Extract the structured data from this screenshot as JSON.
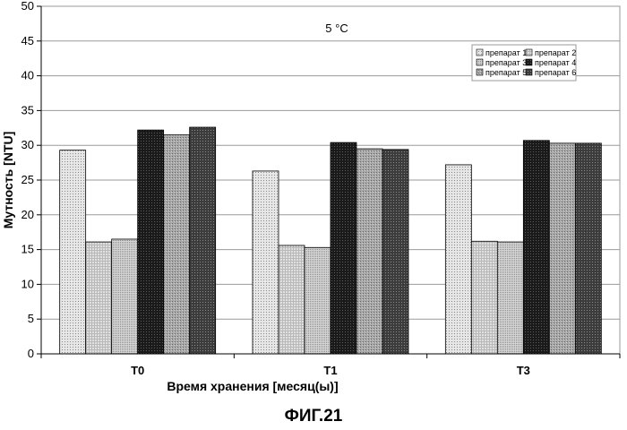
{
  "chart_data": {
    "type": "bar",
    "title": "",
    "annotation": "5 °C",
    "xlabel": "Время хранения [месяц(ы)]",
    "ylabel": "Мутность [NTU]",
    "ylim": [
      0,
      50
    ],
    "yticks": [
      0,
      5,
      10,
      15,
      20,
      25,
      30,
      35,
      40,
      45,
      50
    ],
    "grid": true,
    "legend_position": "top-right",
    "categories": [
      "T0",
      "T1",
      "T3"
    ],
    "series": [
      {
        "name": "препарат 1",
        "values": [
          29.3,
          26.3,
          27.2
        ],
        "pattern": "dots-light"
      },
      {
        "name": "препарат 2",
        "values": [
          16.1,
          15.6,
          16.2
        ],
        "pattern": "grid-light"
      },
      {
        "name": "препарат 3",
        "values": [
          16.5,
          15.3,
          16.1
        ],
        "pattern": "dots-medium"
      },
      {
        "name": "препарат 4",
        "values": [
          32.2,
          30.4,
          30.7
        ],
        "pattern": "dark-grid"
      },
      {
        "name": "препарат 5",
        "values": [
          31.5,
          29.5,
          30.3
        ],
        "pattern": "grey-dots"
      },
      {
        "name": "препарат 6",
        "values": [
          32.6,
          29.4,
          30.3
        ],
        "pattern": "dark-dots"
      }
    ]
  },
  "figure_caption": "ФИГ.21"
}
